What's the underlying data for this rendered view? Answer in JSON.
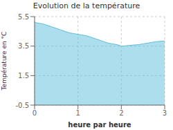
{
  "chart_data": {
    "type": "area",
    "title": "Evolution de la température",
    "x_label": "heure par heure",
    "y_label": "Température en °C",
    "x": [
      0,
      0.1,
      0.2,
      0.3,
      0.4,
      0.5,
      0.6,
      0.7,
      0.8,
      0.9,
      1.0,
      1.1,
      1.2,
      1.3,
      1.4,
      1.5,
      1.6,
      1.7,
      1.8,
      1.9,
      2.0,
      2.1,
      2.2,
      2.3,
      2.4,
      2.5,
      2.6,
      2.7,
      2.8,
      2.9,
      3.0
    ],
    "values": [
      5.1,
      5.05,
      5.0,
      4.9,
      4.8,
      4.7,
      4.6,
      4.5,
      4.4,
      4.35,
      4.3,
      4.25,
      4.2,
      4.1,
      4.0,
      3.9,
      3.8,
      3.7,
      3.65,
      3.6,
      3.5,
      3.52,
      3.55,
      3.58,
      3.6,
      3.65,
      3.7,
      3.75,
      3.8,
      3.82,
      3.85
    ],
    "color": "#5bbddb",
    "xlim": [
      0,
      3
    ],
    "xticks": [
      0,
      1,
      2,
      3
    ],
    "ylim": [
      -0.5,
      5.5
    ],
    "yticks": [
      -0.5,
      1.5,
      3.5,
      5.5
    ],
    "grid": true
  }
}
